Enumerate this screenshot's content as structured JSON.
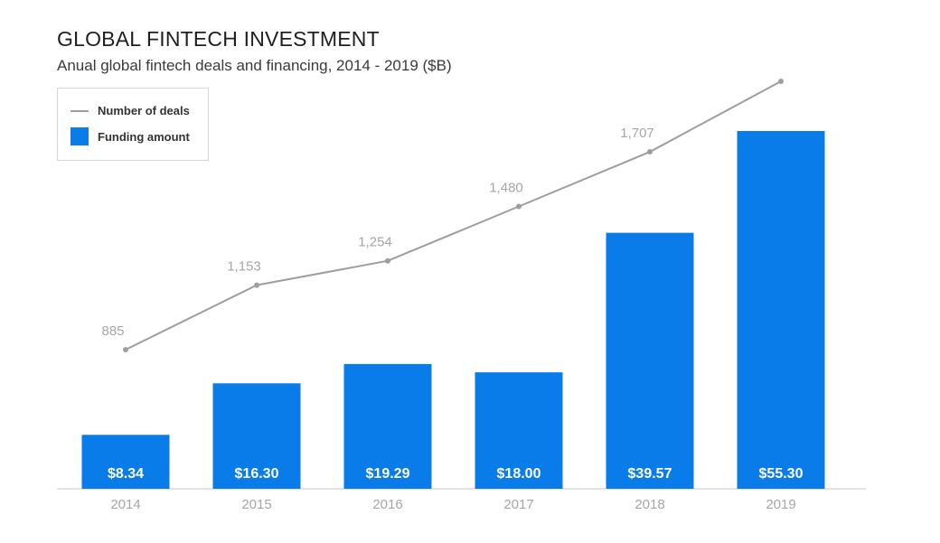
{
  "header": {
    "title": "GLOBAL FINTECH INVESTMENT",
    "subtitle": "Anual global fintech deals and financing, 2014 - 2019 ($B)"
  },
  "legend": {
    "line_label": "Number of deals",
    "bar_label": "Funding amount"
  },
  "colors": {
    "bar": "#0a7cea",
    "line": "#9e9e9e",
    "bar_label": "#ffffff",
    "axis_label": "#a6a6a6",
    "axis": "#c8c8c8"
  },
  "chart_data": {
    "type": "bar",
    "title": "GLOBAL FINTECH INVESTMENT",
    "subtitle": "Anual global fintech deals and financing, 2014 - 2019 ($B)",
    "categories": [
      "2014",
      "2015",
      "2016",
      "2017",
      "2018",
      "2019"
    ],
    "series": [
      {
        "name": "Funding amount",
        "type": "bar",
        "values": [
          8.34,
          16.3,
          19.29,
          18.0,
          39.57,
          55.3
        ],
        "labels": [
          "$8.34",
          "$16.30",
          "$19.29",
          "$18.00",
          "$39.57",
          "$55.30"
        ]
      },
      {
        "name": "Number of deals",
        "type": "line",
        "values": [
          885,
          1153,
          1254,
          1480,
          1707,
          2000
        ],
        "labels": [
          "885",
          "1,153",
          "1,254",
          "1,480",
          "1,707",
          ""
        ]
      }
    ],
    "legend_position": "top-left",
    "grid": false
  }
}
